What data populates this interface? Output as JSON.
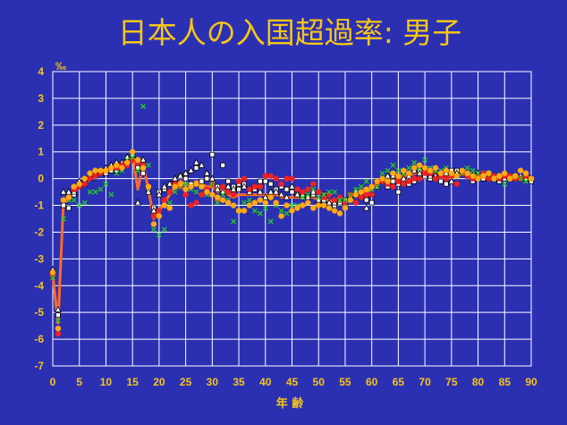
{
  "chart_data": {
    "type": "scatter",
    "title": "日本人の入国超過率: 男子",
    "ylabel": "‰",
    "xlabel": "年 齢",
    "xlim": [
      0,
      90
    ],
    "ylim": [
      -7,
      4
    ],
    "x_ticks": [
      "0",
      "5",
      "10",
      "15",
      "20",
      "25",
      "30",
      "35",
      "40",
      "45",
      "50",
      "55",
      "60",
      "65",
      "70",
      "75",
      "80",
      "85",
      "90"
    ],
    "y_ticks": [
      "4",
      "3",
      "2",
      "1",
      "0",
      "-1",
      "-2",
      "-3",
      "-4",
      "-5",
      "-6",
      "-7"
    ],
    "grid": true,
    "colors": {
      "background": "#2b30b3",
      "plot_background": "#2b30b3",
      "grid": "#ffffff",
      "text": "#f5c518",
      "line": "#ff6a2a"
    },
    "series": [
      {
        "marker": "square",
        "color": "#ffffff",
        "stroke": "#000000",
        "x": [
          0,
          1,
          2,
          3,
          4,
          5,
          6,
          7,
          8,
          9,
          10,
          11,
          12,
          13,
          14,
          15,
          16,
          17,
          18,
          19,
          20,
          21,
          22,
          23,
          24,
          25,
          26,
          27,
          28,
          29,
          30,
          31,
          32,
          33,
          34,
          35,
          36,
          37,
          38,
          39,
          40,
          41,
          42,
          43,
          44,
          45,
          46,
          47,
          48,
          49,
          50,
          51,
          52,
          53,
          54,
          55,
          56,
          57,
          58,
          59,
          60,
          61,
          62,
          63,
          64,
          65,
          66,
          67,
          68,
          69,
          70,
          71,
          72,
          73,
          74,
          75,
          76,
          77,
          78,
          79,
          80,
          81,
          82,
          83,
          84,
          85,
          86,
          87,
          88,
          89,
          90
        ],
        "y": [
          -3.5,
          -5.1,
          -1.0,
          -1.1,
          -0.6,
          -0.3,
          -0.2,
          0.0,
          0.1,
          0.2,
          0.2,
          0.3,
          0.3,
          0.5,
          0.6,
          0.8,
          0.4,
          0.2,
          -0.4,
          -1.1,
          -0.5,
          -0.4,
          -0.2,
          -0.2,
          0.1,
          0.0,
          -0.2,
          0.4,
          -0.1,
          0.0,
          0.9,
          -0.3,
          0.5,
          -0.1,
          -0.3,
          -0.4,
          -0.2,
          -0.4,
          -0.4,
          -0.1,
          -0.1,
          -0.2,
          -0.4,
          -0.3,
          -0.4,
          -0.5,
          -0.6,
          -0.7,
          -0.7,
          -0.6,
          -1.0,
          -0.8,
          -1.0,
          -1.0,
          -0.9,
          -0.8,
          -0.7,
          -0.6,
          -0.7,
          -0.8,
          -0.9,
          -0.1,
          -0.1,
          -0.3,
          -0.1,
          -0.5,
          -0.1,
          -0.2,
          -0.1,
          0.3,
          0.1,
          0.0,
          0.1,
          -0.1,
          -0.2,
          0.3,
          0.3,
          0.2,
          0.1,
          -0.1,
          0.1,
          0.0,
          0.0,
          0.1,
          -0.1,
          0.0,
          0.0,
          0.1,
          0.0,
          0.0,
          -0.1
        ]
      },
      {
        "marker": "triangle",
        "color": "#ffffff",
        "stroke": "#000000",
        "x": [
          0,
          1,
          2,
          3,
          4,
          5,
          6,
          7,
          8,
          9,
          10,
          11,
          12,
          13,
          14,
          15,
          16,
          17,
          18,
          19,
          20,
          21,
          22,
          23,
          24,
          25,
          26,
          27,
          28,
          29,
          30,
          31,
          32,
          33,
          34,
          35,
          36,
          37,
          38,
          39,
          40,
          41,
          42,
          43,
          44,
          45,
          46,
          47,
          48,
          49,
          50,
          51,
          52,
          53,
          54,
          55,
          56,
          57,
          58,
          59,
          60,
          61,
          62,
          63,
          64,
          65,
          66,
          67,
          68,
          69,
          70,
          71,
          72,
          73,
          74,
          75,
          76,
          77,
          78,
          79,
          80,
          81,
          82,
          83,
          84,
          85,
          86,
          87,
          88,
          89,
          90
        ],
        "y": [
          -3.4,
          -4.9,
          -0.5,
          -0.5,
          -0.5,
          -0.1,
          -0.1,
          0.0,
          0.2,
          0.3,
          0.4,
          0.5,
          0.6,
          0.6,
          0.8,
          0.9,
          -0.9,
          0.7,
          -0.5,
          -1.2,
          -0.6,
          -0.3,
          -0.2,
          0.0,
          0.1,
          0.2,
          0.3,
          0.6,
          0.5,
          0.2,
          0.0,
          -0.4,
          -0.5,
          -0.3,
          -0.4,
          -0.2,
          -0.3,
          -0.5,
          -0.3,
          -0.5,
          -0.7,
          -0.5,
          -0.5,
          -0.6,
          -0.7,
          -0.3,
          -0.6,
          -0.6,
          -0.7,
          -0.5,
          -0.8,
          -0.6,
          -0.9,
          -0.9,
          -0.8,
          -0.9,
          -0.6,
          -0.5,
          -0.6,
          -1.1,
          -0.6,
          -0.3,
          0.0,
          0.1,
          0.1,
          -0.2,
          0.0,
          0.1,
          0.3,
          0.2,
          0.4,
          0.1,
          0.1,
          0.2,
          0.2,
          -0.1,
          0.2,
          0.3,
          0.2,
          0.1,
          0.2,
          0.1,
          0.1,
          0.1,
          0.0,
          0.0,
          0.1,
          0.0,
          0.1,
          0.0,
          0.0
        ]
      },
      {
        "marker": "circle",
        "color": "#ee2222",
        "stroke": "#ee2222",
        "x": [
          0,
          1,
          2,
          3,
          4,
          5,
          6,
          7,
          8,
          9,
          10,
          11,
          12,
          13,
          14,
          15,
          16,
          17,
          18,
          19,
          20,
          21,
          22,
          23,
          24,
          25,
          26,
          27,
          28,
          29,
          30,
          31,
          32,
          33,
          34,
          35,
          36,
          37,
          38,
          39,
          40,
          41,
          42,
          43,
          44,
          45,
          46,
          47,
          48,
          49,
          50,
          51,
          52,
          53,
          54,
          55,
          56,
          57,
          58,
          59,
          60,
          61,
          62,
          63,
          64,
          65,
          66,
          67,
          68,
          69,
          70,
          71,
          72,
          73,
          74,
          75,
          76,
          77,
          78,
          79,
          80,
          81,
          82,
          83,
          84,
          85,
          86,
          87,
          88,
          89,
          90
        ],
        "y": [
          -3.6,
          -5.8,
          -0.8,
          -0.7,
          -0.4,
          -0.3,
          -0.2,
          0.0,
          0.1,
          0.2,
          0.3,
          0.4,
          0.4,
          0.5,
          0.5,
          0.7,
          0.6,
          0.5,
          -0.3,
          -1.4,
          -1.2,
          -0.8,
          -0.5,
          -0.2,
          -0.3,
          -0.6,
          -1.0,
          -0.9,
          -0.6,
          -0.4,
          -0.2,
          -0.8,
          -0.3,
          -0.5,
          -0.6,
          -0.1,
          0.0,
          -0.4,
          -0.3,
          -0.3,
          0.1,
          0.1,
          0.0,
          -0.2,
          0.0,
          0.0,
          -0.4,
          -0.5,
          -0.4,
          -0.2,
          -0.5,
          -0.7,
          -0.6,
          -0.8,
          -0.7,
          -0.9,
          -0.6,
          -0.9,
          -0.7,
          -0.6,
          -0.6,
          -0.2,
          -0.1,
          -0.2,
          -0.3,
          -0.1,
          -0.2,
          -0.1,
          0.0,
          0.0,
          0.2,
          0.2,
          0.0,
          0.1,
          0.0,
          0.1,
          -0.2,
          0.2,
          0.1,
          0.0,
          0.1,
          0.2,
          0.0,
          0.1,
          0.0,
          0.1,
          0.1,
          0.0,
          0.0,
          0.1,
          0.0
        ]
      },
      {
        "marker": "x",
        "color": "#22cc22",
        "stroke": "#22cc22",
        "x": [
          0,
          1,
          2,
          3,
          4,
          5,
          6,
          7,
          8,
          9,
          10,
          11,
          12,
          13,
          14,
          15,
          16,
          17,
          18,
          19,
          20,
          21,
          22,
          23,
          24,
          25,
          26,
          27,
          28,
          29,
          30,
          31,
          32,
          33,
          34,
          35,
          36,
          37,
          38,
          39,
          40,
          41,
          42,
          43,
          44,
          45,
          46,
          47,
          48,
          49,
          50,
          51,
          52,
          53,
          54,
          55,
          56,
          57,
          58,
          59,
          60,
          61,
          62,
          63,
          64,
          65,
          66,
          67,
          68,
          69,
          70,
          71,
          72,
          73,
          74,
          75,
          76,
          77,
          78,
          79,
          80,
          81,
          82,
          83,
          84,
          85,
          86,
          87,
          88,
          89,
          90
        ],
        "y": [
          -3.7,
          -5.3,
          -1.5,
          -0.8,
          -0.8,
          -1.0,
          -0.9,
          -0.5,
          -0.5,
          -0.4,
          -0.2,
          -0.6,
          0.2,
          0.3,
          0.7,
          0.8,
          0.3,
          2.7,
          0.5,
          -1.9,
          -2.1,
          -1.9,
          -0.9,
          -0.5,
          -0.3,
          -0.2,
          -0.4,
          -0.5,
          -0.3,
          -0.6,
          -0.2,
          -0.9,
          -0.6,
          -0.8,
          -1.6,
          -1.2,
          -0.9,
          -0.8,
          -1.2,
          -1.3,
          -1.1,
          -1.6,
          -1.0,
          -1.2,
          -1.3,
          -1.0,
          -1.0,
          -0.7,
          -0.6,
          -0.4,
          -0.7,
          -0.6,
          -0.5,
          -0.5,
          -0.8,
          -0.8,
          -0.6,
          -0.4,
          -0.3,
          -0.1,
          -0.4,
          -0.3,
          0.2,
          0.3,
          0.5,
          0.3,
          0.2,
          0.4,
          0.6,
          0.4,
          0.7,
          0.4,
          0.3,
          0.3,
          0.4,
          0.2,
          0.1,
          0.2,
          0.4,
          0.3,
          0.2,
          0.1,
          0.2,
          0.0,
          0.1,
          -0.2,
          0.0,
          0.1,
          0.0,
          -0.1,
          0.0
        ]
      },
      {
        "marker": "circle",
        "color": "#ffaa11",
        "stroke": "#ffaa11",
        "x": [
          0,
          1,
          2,
          3,
          4,
          5,
          6,
          7,
          8,
          9,
          10,
          11,
          12,
          13,
          14,
          15,
          16,
          17,
          18,
          19,
          20,
          21,
          22,
          23,
          24,
          25,
          26,
          27,
          28,
          29,
          30,
          31,
          32,
          33,
          34,
          35,
          36,
          37,
          38,
          39,
          40,
          41,
          42,
          43,
          44,
          45,
          46,
          47,
          48,
          49,
          50,
          51,
          52,
          53,
          54,
          55,
          56,
          57,
          58,
          59,
          60,
          61,
          62,
          63,
          64,
          65,
          66,
          67,
          68,
          69,
          70,
          71,
          72,
          73,
          74,
          75,
          76,
          77,
          78,
          79,
          80,
          81,
          82,
          83,
          84,
          85,
          86,
          87,
          88,
          89,
          90
        ],
        "y": [
          -3.5,
          -5.6,
          -0.8,
          -0.7,
          -0.3,
          -0.2,
          0.0,
          0.2,
          0.3,
          0.3,
          0.3,
          0.4,
          0.5,
          0.4,
          0.6,
          1.0,
          0.7,
          0.4,
          -0.3,
          -1.7,
          -1.4,
          -1.0,
          -1.1,
          -0.3,
          -0.2,
          -0.4,
          -0.3,
          -0.2,
          -0.3,
          -0.5,
          -0.6,
          -0.7,
          -0.8,
          -0.9,
          -1.0,
          -1.2,
          -1.2,
          -1.0,
          -0.9,
          -0.8,
          -0.9,
          -0.7,
          -0.9,
          -1.4,
          -1.0,
          -1.2,
          -1.1,
          -1.0,
          -0.9,
          -1.1,
          -1.0,
          -1.0,
          -1.1,
          -1.2,
          -1.3,
          -1.1,
          -0.8,
          -0.6,
          -0.5,
          -0.4,
          -0.3,
          -0.1,
          0.0,
          -0.1,
          0.2,
          0.1,
          0.3,
          0.2,
          0.4,
          0.5,
          0.4,
          0.3,
          0.4,
          0.2,
          0.3,
          0.2,
          0.1,
          0.3,
          0.2,
          0.1,
          0.0,
          0.1,
          0.2,
          0.0,
          0.1,
          0.2,
          0.0,
          0.1,
          0.3,
          0.2,
          0.0
        ]
      }
    ],
    "trend_line": {
      "x": [
        0,
        1,
        2,
        3,
        4,
        5,
        6,
        7,
        8,
        9,
        10,
        11,
        12,
        13,
        14,
        15,
        16,
        17,
        18,
        19,
        20,
        21,
        22,
        23,
        24,
        25,
        26,
        27,
        28,
        29,
        30,
        31,
        32,
        33,
        34,
        35,
        36,
        37,
        38,
        39,
        40,
        41,
        42,
        43,
        44,
        45,
        46,
        47,
        48,
        49,
        50,
        51,
        52,
        53,
        54,
        55,
        56,
        57,
        58,
        59,
        60,
        61,
        62,
        63,
        64,
        65,
        66,
        67,
        68,
        69,
        70,
        71,
        72,
        73,
        74,
        75,
        76,
        77,
        78,
        79,
        80,
        81,
        82,
        83,
        84,
        85,
        86,
        87,
        88,
        89,
        90
      ],
      "y": [
        -3.6,
        -5.4,
        -0.9,
        -0.8,
        -0.5,
        -0.3,
        -0.2,
        0.0,
        0.2,
        0.3,
        0.3,
        0.4,
        0.5,
        0.5,
        0.7,
        0.9,
        -0.4,
        0.5,
        -0.4,
        -1.5,
        -1.2,
        -0.9,
        -0.6,
        -0.3,
        -0.1,
        -0.2,
        -0.2,
        -0.1,
        -0.2,
        -0.3,
        -0.3,
        -0.5,
        -0.4,
        -0.6,
        -0.7,
        -0.6,
        -0.6,
        -0.6,
        -0.6,
        -0.6,
        -0.6,
        -0.6,
        -0.6,
        -0.7,
        -0.7,
        -0.7,
        -0.7,
        -0.7,
        -0.7,
        -0.7,
        -0.8,
        -0.8,
        -0.8,
        -0.9,
        -0.9,
        -0.9,
        -0.7,
        -0.6,
        -0.5,
        -0.5,
        -0.4,
        -0.2,
        -0.1,
        -0.1,
        0.0,
        0.0,
        0.1,
        0.1,
        0.2,
        0.2,
        0.3,
        0.2,
        0.2,
        0.2,
        0.1,
        0.1,
        0.1,
        0.2,
        0.1,
        0.1,
        0.1,
        0.1,
        0.1,
        0.1,
        0.0,
        0.0,
        0.1,
        0.0,
        0.1,
        0.0,
        0.0
      ]
    }
  }
}
